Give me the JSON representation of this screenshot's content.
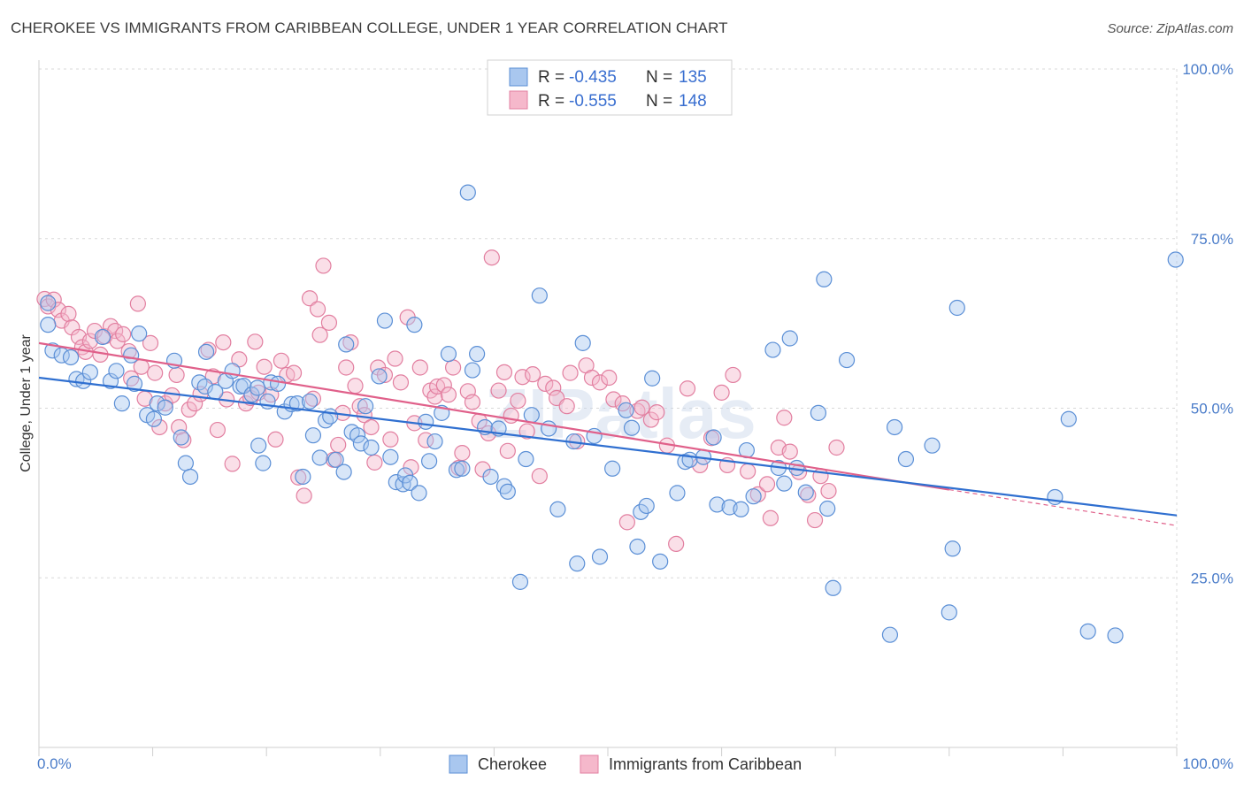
{
  "title": "CHEROKEE VS IMMIGRANTS FROM CARIBBEAN COLLEGE, UNDER 1 YEAR CORRELATION CHART",
  "source": "Source: ZipAtlas.com",
  "watermark": "ZIPatlas",
  "colors": {
    "cherokee_fill": "#a9c7ef",
    "cherokee_stroke": "#5b8fd6",
    "cherokee_line": "#2f6fd0",
    "caribbean_fill": "#f5b8cb",
    "caribbean_stroke": "#e27fa0",
    "caribbean_line": "#e0608a",
    "grid": "#d8d8d8",
    "tick_text": "#4a7cc9"
  },
  "legend": {
    "rows": [
      {
        "r_label": "R =",
        "r_value": "-0.435",
        "n_label": "N =",
        "n_value": "135"
      },
      {
        "r_label": "R =",
        "r_value": "-0.555",
        "n_label": "N =",
        "n_value": "148"
      }
    ]
  },
  "bottom_legend": [
    "Cherokee",
    "Immigrants from Caribbean"
  ],
  "chart_data": {
    "type": "scatter",
    "xlabel": "",
    "ylabel": "College, Under 1 year",
    "xlim": [
      0,
      100
    ],
    "ylim": [
      0,
      100
    ],
    "x_tick_labels": [
      "0.0%",
      "100.0%"
    ],
    "y_tick_labels": [
      "25.0%",
      "50.0%",
      "75.0%",
      "100.0%"
    ],
    "y_ticks": [
      25,
      50,
      75,
      100
    ],
    "grid": true,
    "legend_placement": "top-center",
    "series": [
      {
        "name": "Cherokee",
        "trend": {
          "x": [
            0,
            100
          ],
          "y": [
            54.5,
            34.2
          ]
        },
        "points": [
          [
            0.8,
            65.5
          ],
          [
            0.8,
            62.3
          ],
          [
            1.2,
            58.5
          ],
          [
            2.0,
            57.8
          ],
          [
            2.8,
            57.5
          ],
          [
            3.3,
            54.3
          ],
          [
            3.9,
            54.0
          ],
          [
            4.5,
            55.3
          ],
          [
            5.6,
            60.5
          ],
          [
            6.3,
            54.0
          ],
          [
            6.8,
            55.5
          ],
          [
            7.3,
            50.7
          ],
          [
            8.1,
            57.8
          ],
          [
            8.4,
            53.6
          ],
          [
            8.8,
            61.0
          ],
          [
            9.5,
            49.0
          ],
          [
            10.1,
            48.4
          ],
          [
            10.4,
            50.7
          ],
          [
            11.1,
            50.1
          ],
          [
            11.9,
            57.0
          ],
          [
            12.5,
            45.7
          ],
          [
            12.9,
            41.9
          ],
          [
            13.3,
            39.9
          ],
          [
            14.1,
            53.8
          ],
          [
            14.6,
            53.2
          ],
          [
            14.7,
            58.3
          ],
          [
            15.5,
            52.4
          ],
          [
            16.4,
            54.0
          ],
          [
            17.0,
            55.5
          ],
          [
            17.7,
            53.2
          ],
          [
            18.0,
            53.3
          ],
          [
            18.7,
            52.0
          ],
          [
            19.2,
            53.0
          ],
          [
            19.3,
            44.5
          ],
          [
            19.7,
            41.9
          ],
          [
            20.1,
            51.0
          ],
          [
            20.4,
            53.8
          ],
          [
            21.0,
            53.6
          ],
          [
            21.6,
            49.5
          ],
          [
            22.2,
            50.6
          ],
          [
            22.7,
            50.7
          ],
          [
            23.2,
            39.9
          ],
          [
            23.8,
            51.0
          ],
          [
            24.1,
            46.0
          ],
          [
            24.7,
            42.7
          ],
          [
            25.2,
            48.2
          ],
          [
            25.6,
            48.8
          ],
          [
            26.1,
            42.4
          ],
          [
            26.8,
            40.6
          ],
          [
            27.0,
            59.4
          ],
          [
            27.5,
            46.5
          ],
          [
            28.0,
            46.0
          ],
          [
            28.3,
            44.8
          ],
          [
            28.7,
            50.3
          ],
          [
            29.2,
            44.2
          ],
          [
            29.9,
            54.7
          ],
          [
            30.4,
            62.9
          ],
          [
            30.9,
            42.8
          ],
          [
            31.4,
            39.1
          ],
          [
            32.0,
            38.8
          ],
          [
            32.2,
            40.1
          ],
          [
            32.6,
            39.0
          ],
          [
            33.0,
            62.3
          ],
          [
            33.4,
            37.5
          ],
          [
            34.0,
            48.0
          ],
          [
            34.3,
            42.2
          ],
          [
            34.8,
            45.1
          ],
          [
            35.4,
            49.3
          ],
          [
            36.0,
            58.0
          ],
          [
            36.7,
            40.9
          ],
          [
            37.2,
            41.1
          ],
          [
            37.7,
            81.8
          ],
          [
            38.1,
            55.6
          ],
          [
            38.5,
            58.0
          ],
          [
            39.2,
            47.2
          ],
          [
            39.7,
            39.9
          ],
          [
            40.4,
            47.0
          ],
          [
            40.9,
            38.5
          ],
          [
            41.2,
            37.7
          ],
          [
            42.3,
            24.4
          ],
          [
            42.8,
            42.5
          ],
          [
            43.3,
            49.0
          ],
          [
            44.0,
            66.6
          ],
          [
            44.8,
            47.0
          ],
          [
            45.6,
            35.1
          ],
          [
            47.0,
            45.1
          ],
          [
            47.3,
            27.1
          ],
          [
            47.8,
            59.6
          ],
          [
            48.8,
            45.9
          ],
          [
            49.3,
            28.1
          ],
          [
            50.4,
            41.1
          ],
          [
            51.6,
            49.7
          ],
          [
            52.1,
            47.1
          ],
          [
            52.6,
            29.6
          ],
          [
            52.9,
            34.7
          ],
          [
            53.4,
            35.6
          ],
          [
            53.9,
            54.4
          ],
          [
            54.6,
            27.4
          ],
          [
            56.1,
            37.5
          ],
          [
            56.8,
            42.1
          ],
          [
            57.2,
            42.4
          ],
          [
            58.4,
            42.8
          ],
          [
            59.3,
            45.7
          ],
          [
            59.6,
            35.8
          ],
          [
            60.7,
            35.4
          ],
          [
            61.7,
            35.1
          ],
          [
            62.2,
            43.8
          ],
          [
            62.8,
            37.0
          ],
          [
            64.5,
            58.6
          ],
          [
            65.0,
            41.2
          ],
          [
            65.5,
            38.9
          ],
          [
            66.0,
            60.3
          ],
          [
            66.6,
            41.2
          ],
          [
            67.4,
            37.6
          ],
          [
            68.5,
            49.3
          ],
          [
            69.0,
            69.0
          ],
          [
            69.3,
            35.2
          ],
          [
            69.8,
            23.5
          ],
          [
            71.0,
            57.1
          ],
          [
            74.8,
            16.6
          ],
          [
            75.2,
            47.2
          ],
          [
            76.2,
            42.5
          ],
          [
            78.5,
            44.5
          ],
          [
            80.0,
            19.9
          ],
          [
            80.3,
            29.3
          ],
          [
            80.7,
            64.8
          ],
          [
            89.3,
            36.9
          ],
          [
            90.5,
            48.4
          ],
          [
            92.2,
            17.1
          ],
          [
            94.6,
            16.5
          ],
          [
            99.9,
            71.9
          ]
        ]
      },
      {
        "name": "Immigrants from Caribbean",
        "trend": {
          "x": [
            0,
            80
          ],
          "y": [
            59.6,
            38.0
          ]
        },
        "trend_dashed": {
          "x": [
            80,
            100
          ],
          "y": [
            38.0,
            32.7
          ]
        },
        "points": [
          [
            0.5,
            66.1
          ],
          [
            0.8,
            65.0
          ],
          [
            1.3,
            66.0
          ],
          [
            1.7,
            64.5
          ],
          [
            2.0,
            62.9
          ],
          [
            2.6,
            63.9
          ],
          [
            2.9,
            61.9
          ],
          [
            3.5,
            60.5
          ],
          [
            3.8,
            59.0
          ],
          [
            4.1,
            58.3
          ],
          [
            4.5,
            59.9
          ],
          [
            4.9,
            61.4
          ],
          [
            5.4,
            57.9
          ],
          [
            5.8,
            60.6
          ],
          [
            6.3,
            62.1
          ],
          [
            6.7,
            61.4
          ],
          [
            6.9,
            59.9
          ],
          [
            7.4,
            60.9
          ],
          [
            7.9,
            58.4
          ],
          [
            8.1,
            54.4
          ],
          [
            8.7,
            65.4
          ],
          [
            9.0,
            56.1
          ],
          [
            9.3,
            51.4
          ],
          [
            9.8,
            59.6
          ],
          [
            10.2,
            55.2
          ],
          [
            10.6,
            47.2
          ],
          [
            11.1,
            50.7
          ],
          [
            11.7,
            51.9
          ],
          [
            12.1,
            54.9
          ],
          [
            12.3,
            47.2
          ],
          [
            12.7,
            45.3
          ],
          [
            13.2,
            49.8
          ],
          [
            13.7,
            50.7
          ],
          [
            14.2,
            52.1
          ],
          [
            14.9,
            58.6
          ],
          [
            15.3,
            54.7
          ],
          [
            15.7,
            46.8
          ],
          [
            16.2,
            59.7
          ],
          [
            16.5,
            51.3
          ],
          [
            17.0,
            41.8
          ],
          [
            17.6,
            57.2
          ],
          [
            18.2,
            50.7
          ],
          [
            18.6,
            51.5
          ],
          [
            19.0,
            59.8
          ],
          [
            19.3,
            52.3
          ],
          [
            19.8,
            56.1
          ],
          [
            20.4,
            52.0
          ],
          [
            20.8,
            45.4
          ],
          [
            21.3,
            57.0
          ],
          [
            21.8,
            54.9
          ],
          [
            22.4,
            55.2
          ],
          [
            22.8,
            39.8
          ],
          [
            23.3,
            37.1
          ],
          [
            23.8,
            66.2
          ],
          [
            24.1,
            51.4
          ],
          [
            24.5,
            64.6
          ],
          [
            24.7,
            60.8
          ],
          [
            25.0,
            71.0
          ],
          [
            25.5,
            62.6
          ],
          [
            25.9,
            42.4
          ],
          [
            26.3,
            44.6
          ],
          [
            26.7,
            49.3
          ],
          [
            27.0,
            56.0
          ],
          [
            27.4,
            59.7
          ],
          [
            27.8,
            53.3
          ],
          [
            28.2,
            50.3
          ],
          [
            28.6,
            49.0
          ],
          [
            29.2,
            47.2
          ],
          [
            29.5,
            42.0
          ],
          [
            29.8,
            56.0
          ],
          [
            30.4,
            54.9
          ],
          [
            30.9,
            45.4
          ],
          [
            31.3,
            57.3
          ],
          [
            31.8,
            53.8
          ],
          [
            32.4,
            63.4
          ],
          [
            32.7,
            41.3
          ],
          [
            33.0,
            47.8
          ],
          [
            33.5,
            56.0
          ],
          [
            34.0,
            45.3
          ],
          [
            34.4,
            52.6
          ],
          [
            34.8,
            51.7
          ],
          [
            35.0,
            53.2
          ],
          [
            35.6,
            53.4
          ],
          [
            36.0,
            52.0
          ],
          [
            36.4,
            56.0
          ],
          [
            36.9,
            41.2
          ],
          [
            37.2,
            43.4
          ],
          [
            37.7,
            52.5
          ],
          [
            38.1,
            50.9
          ],
          [
            38.7,
            48.1
          ],
          [
            39.0,
            41.0
          ],
          [
            39.5,
            46.3
          ],
          [
            39.8,
            72.2
          ],
          [
            40.4,
            52.6
          ],
          [
            40.9,
            55.3
          ],
          [
            41.2,
            43.7
          ],
          [
            41.5,
            48.9
          ],
          [
            42.1,
            51.1
          ],
          [
            42.5,
            54.6
          ],
          [
            42.9,
            46.6
          ],
          [
            43.4,
            55.0
          ],
          [
            44.0,
            40.0
          ],
          [
            44.5,
            53.6
          ],
          [
            45.2,
            53.0
          ],
          [
            45.5,
            51.5
          ],
          [
            46.4,
            50.3
          ],
          [
            46.7,
            55.2
          ],
          [
            47.3,
            45.1
          ],
          [
            48.1,
            56.3
          ],
          [
            48.6,
            54.5
          ],
          [
            49.3,
            53.8
          ],
          [
            50.1,
            54.5
          ],
          [
            50.5,
            51.3
          ],
          [
            51.3,
            50.7
          ],
          [
            51.7,
            33.2
          ],
          [
            52.6,
            49.6
          ],
          [
            53.0,
            50.1
          ],
          [
            53.8,
            48.3
          ],
          [
            54.3,
            49.4
          ],
          [
            55.2,
            44.5
          ],
          [
            56.0,
            30.0
          ],
          [
            57.0,
            52.9
          ],
          [
            58.1,
            41.6
          ],
          [
            59.1,
            45.6
          ],
          [
            60.0,
            52.3
          ],
          [
            60.5,
            41.6
          ],
          [
            61.0,
            54.9
          ],
          [
            62.3,
            40.7
          ],
          [
            63.2,
            37.3
          ],
          [
            64.0,
            38.8
          ],
          [
            64.3,
            33.8
          ],
          [
            65.0,
            44.2
          ],
          [
            65.5,
            48.6
          ],
          [
            66.0,
            43.6
          ],
          [
            66.8,
            40.6
          ],
          [
            67.6,
            37.2
          ],
          [
            68.2,
            33.5
          ],
          [
            68.7,
            40.0
          ],
          [
            69.4,
            37.8
          ],
          [
            70.1,
            44.2
          ]
        ]
      }
    ]
  }
}
